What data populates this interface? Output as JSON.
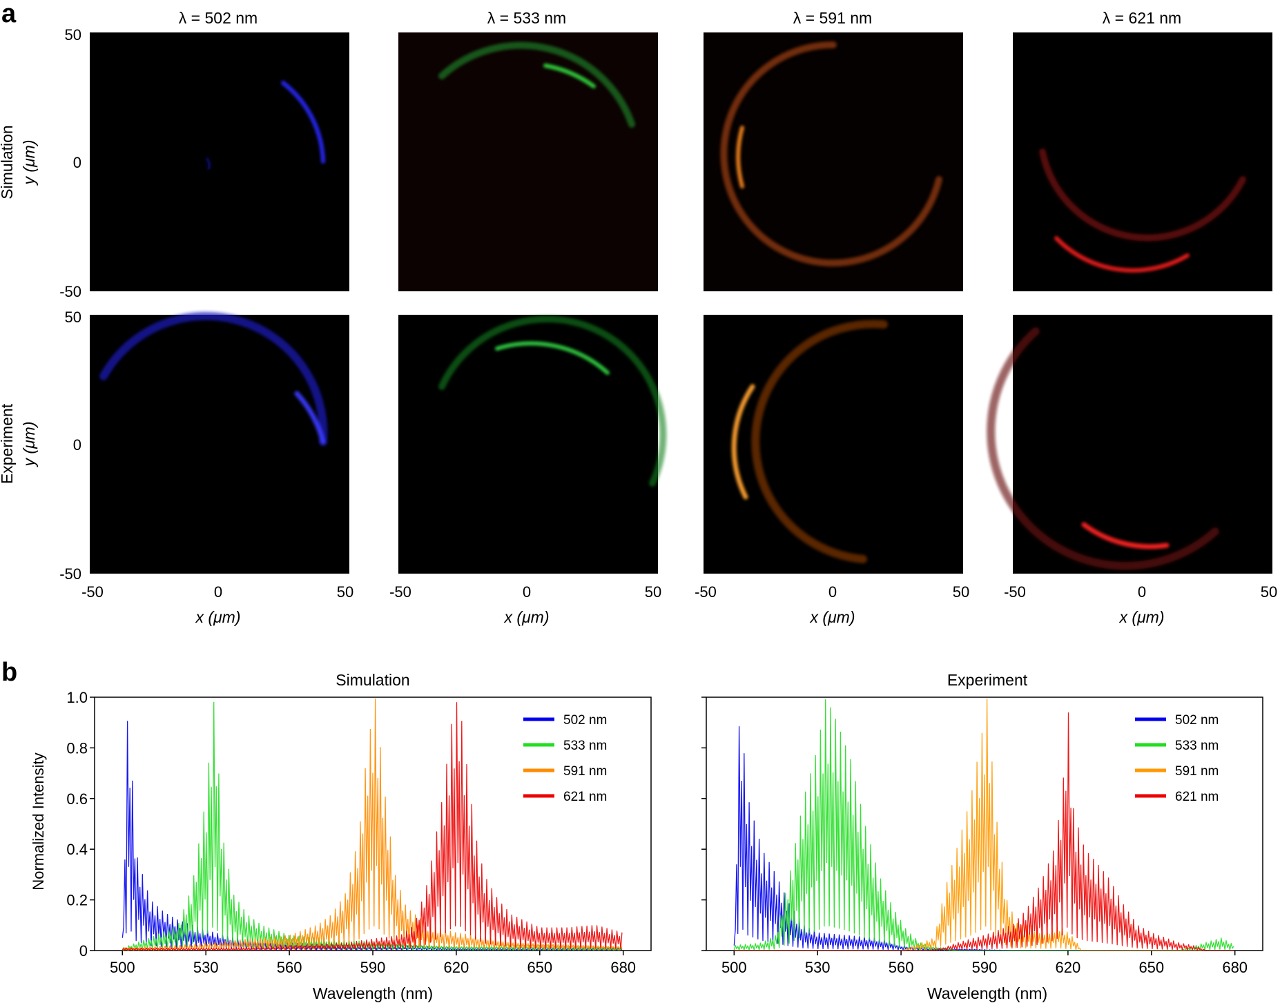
{
  "panel_a": {
    "label": "a",
    "column_titles": [
      "λ = 502 nm",
      "λ = 533 nm",
      "λ = 591 nm",
      "λ = 621 nm"
    ],
    "row_labels": [
      "Simulation",
      "Experiment"
    ],
    "ylabel": "y (μm)",
    "xlabel": "x (μm)",
    "ticks": [
      "-50",
      "0",
      "50"
    ],
    "colors": [
      "#3030ff",
      "#30d040",
      "#ff8a20",
      "#ff2020"
    ]
  },
  "panel_b": {
    "label": "b",
    "titles": [
      "Simulation",
      "Experiment"
    ],
    "ylabel": "Normalized Intensity",
    "xlabel": "Wavelength (nm)"
  },
  "chart_data": [
    {
      "type": "line",
      "title": "Simulation",
      "xlabel": "Wavelength (nm)",
      "ylabel": "Normalized Intensity",
      "xlim": [
        490,
        690
      ],
      "ylim": [
        0,
        1.0
      ],
      "xticks": [
        500,
        530,
        560,
        590,
        620,
        650,
        680
      ],
      "yticks": [
        0,
        0.2,
        0.4,
        0.6,
        0.8,
        1.0
      ],
      "ytick_labels": [
        "0",
        "0.2",
        "0.4",
        "0.6",
        "0.8",
        "1.0"
      ],
      "legend_position": "top-right",
      "series": [
        {
          "name": "502 nm",
          "color": "#0000ee",
          "x": [
            500,
            502,
            505,
            510,
            515,
            520,
            525,
            530,
            540,
            560,
            580,
            600,
            620,
            650,
            680
          ],
          "y": [
            0.05,
            1.0,
            0.38,
            0.2,
            0.15,
            0.12,
            0.1,
            0.08,
            0.05,
            0.03,
            0.02,
            0.02,
            0.01,
            0.01,
            0.01
          ]
        },
        {
          "name": "533 nm",
          "color": "#22dd22",
          "x": [
            500,
            510,
            520,
            525,
            530,
            533,
            536,
            540,
            545,
            550,
            560,
            580,
            600,
            620,
            650,
            680
          ],
          "y": [
            0.01,
            0.05,
            0.1,
            0.25,
            0.6,
            1.0,
            0.45,
            0.22,
            0.14,
            0.1,
            0.06,
            0.04,
            0.03,
            0.02,
            0.02,
            0.01
          ]
        },
        {
          "name": "591 nm",
          "color": "#ff8c00",
          "x": [
            500,
            520,
            540,
            560,
            570,
            575,
            580,
            585,
            588,
            591,
            594,
            598,
            602,
            610,
            620,
            640,
            660,
            680
          ],
          "y": [
            0.01,
            0.02,
            0.04,
            0.06,
            0.1,
            0.14,
            0.22,
            0.45,
            0.8,
            1.0,
            0.65,
            0.3,
            0.17,
            0.1,
            0.07,
            0.04,
            0.03,
            0.02
          ]
        },
        {
          "name": "621 nm",
          "color": "#ee0000",
          "x": [
            500,
            540,
            560,
            580,
            600,
            605,
            610,
            615,
            619,
            621,
            623,
            627,
            630,
            635,
            640,
            650,
            660,
            670,
            680
          ],
          "y": [
            0.01,
            0.01,
            0.02,
            0.03,
            0.06,
            0.1,
            0.28,
            0.6,
            0.95,
            1.0,
            0.8,
            0.45,
            0.3,
            0.2,
            0.14,
            0.09,
            0.09,
            0.1,
            0.07
          ]
        }
      ]
    },
    {
      "type": "line",
      "title": "Experiment",
      "xlabel": "Wavelength (nm)",
      "ylabel": "Normalized Intensity",
      "xlim": [
        490,
        690
      ],
      "ylim": [
        0,
        1.0
      ],
      "xticks": [
        500,
        530,
        560,
        590,
        620,
        650,
        680
      ],
      "yticks": [
        0,
        0.2,
        0.4,
        0.6,
        0.8,
        1.0
      ],
      "legend_position": "top-right",
      "series": [
        {
          "name": "502 nm",
          "color": "#0000ee",
          "x": [
            500,
            502,
            505,
            510,
            515,
            520,
            525,
            530,
            540,
            550,
            555,
            560,
            570,
            600,
            680
          ],
          "y": [
            0.02,
            0.98,
            0.6,
            0.4,
            0.3,
            0.18,
            0.1,
            0.07,
            0.06,
            0.05,
            0.04,
            0.02,
            0.01,
            0.0,
            0.0
          ]
        },
        {
          "name": "533 nm",
          "color": "#22dd22",
          "x": [
            500,
            510,
            515,
            520,
            525,
            530,
            533,
            537,
            542,
            547,
            552,
            557,
            562,
            567,
            575,
            580,
            600,
            620,
            660,
            675,
            680
          ],
          "y": [
            0.02,
            0.03,
            0.06,
            0.3,
            0.6,
            0.8,
            1.0,
            0.9,
            0.75,
            0.5,
            0.3,
            0.17,
            0.08,
            0.03,
            0.01,
            0.0,
            0.0,
            0.0,
            0.0,
            0.05,
            0.02
          ]
        },
        {
          "name": "591 nm",
          "color": "#ff9900",
          "x": [
            500,
            560,
            572,
            576,
            580,
            585,
            589,
            591,
            594,
            598,
            602,
            607,
            612,
            617,
            622,
            625,
            680
          ],
          "y": [
            0.0,
            0.0,
            0.05,
            0.25,
            0.4,
            0.6,
            0.85,
            1.0,
            0.55,
            0.2,
            0.1,
            0.1,
            0.08,
            0.1,
            0.05,
            0.0,
            0.0
          ]
        },
        {
          "name": "621 nm",
          "color": "#ee0000",
          "x": [
            500,
            570,
            575,
            580,
            590,
            600,
            605,
            610,
            615,
            618,
            620,
            622,
            626,
            630,
            635,
            640,
            645,
            650,
            655,
            660,
            665,
            670,
            680
          ],
          "y": [
            0.0,
            0.0,
            0.01,
            0.03,
            0.06,
            0.1,
            0.16,
            0.26,
            0.4,
            0.62,
            0.97,
            0.55,
            0.4,
            0.35,
            0.28,
            0.18,
            0.1,
            0.07,
            0.05,
            0.03,
            0.02,
            0.0,
            0.0
          ]
        }
      ]
    }
  ]
}
